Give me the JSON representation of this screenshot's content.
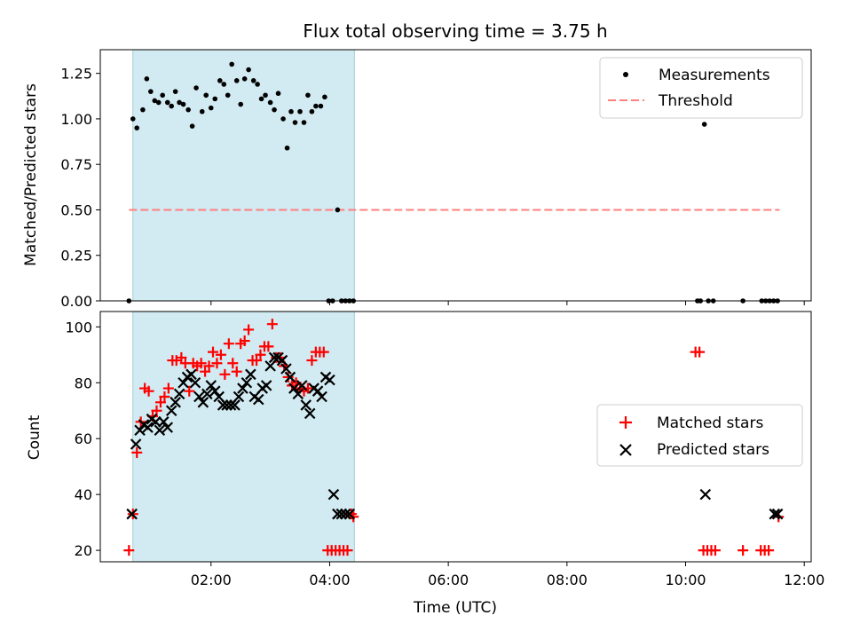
{
  "title": "Flux total observing time = 3.75 h",
  "colors": {
    "shade": "#add8e6",
    "threshold": "#ff7f7f",
    "matched": "#ff0000",
    "predicted": "#000000",
    "measurement": "#000000"
  },
  "chart_data": [
    {
      "type": "scatter",
      "ylabel": "Matched/Predicted stars",
      "ylim": [
        0,
        1.38
      ],
      "xlim": [
        "00:08",
        "12:07"
      ],
      "yticks": [
        "0.00",
        "0.25",
        "0.50",
        "0.75",
        "1.00",
        "1.25"
      ],
      "shaded_span": [
        "00:41",
        "04:25"
      ],
      "legend": {
        "placement": "top-right",
        "measurements": "Measurements",
        "threshold": "Threshold"
      },
      "threshold": {
        "value": 0.5,
        "x_range": [
          "00:37",
          "11:35"
        ]
      },
      "series": [
        {
          "name": "Measurements",
          "x": [
            "00:37",
            "00:41",
            "00:45",
            "00:51",
            "00:55",
            "00:59",
            "01:03",
            "01:07",
            "01:11",
            "01:16",
            "01:20",
            "01:24",
            "01:28",
            "01:32",
            "01:37",
            "01:41",
            "01:45",
            "01:51",
            "01:55",
            "02:00",
            "02:04",
            "02:09",
            "02:13",
            "02:17",
            "02:21",
            "02:26",
            "02:30",
            "02:34",
            "02:38",
            "02:43",
            "02:47",
            "02:51",
            "02:55",
            "03:00",
            "03:04",
            "03:08",
            "03:13",
            "03:17",
            "03:21",
            "03:25",
            "03:30",
            "03:34",
            "03:38",
            "03:42",
            "03:46",
            "03:51",
            "03:55",
            "03:59",
            "04:03",
            "04:08",
            "04:12",
            "04:16",
            "04:20",
            "04:24",
            "10:12",
            "10:15",
            "10:19",
            "10:23",
            "10:28",
            "10:58",
            "11:17",
            "11:21",
            "11:25",
            "11:29",
            "11:33"
          ],
          "y": [
            0.0,
            1.0,
            0.95,
            1.05,
            1.22,
            1.15,
            1.1,
            1.09,
            1.13,
            1.09,
            1.07,
            1.15,
            1.09,
            1.08,
            1.05,
            0.96,
            1.17,
            1.04,
            1.13,
            1.06,
            1.11,
            1.21,
            1.19,
            1.13,
            1.3,
            1.21,
            1.08,
            1.22,
            1.27,
            1.21,
            1.19,
            1.11,
            1.13,
            1.09,
            1.05,
            1.14,
            1.0,
            0.84,
            1.04,
            0.98,
            1.04,
            0.98,
            1.13,
            1.04,
            1.07,
            1.07,
            1.12,
            0.0,
            0.0,
            0.5,
            0.0,
            0.0,
            0.0,
            0.0,
            0.0,
            0.0,
            0.97,
            0.0,
            0.0,
            0.0,
            0.0,
            0.0,
            0.0,
            0.0,
            0.0
          ]
        }
      ]
    },
    {
      "type": "scatter",
      "xlabel": "Time (UTC)",
      "ylabel": "Count",
      "ylim": [
        15.9,
        105.5
      ],
      "xlim": [
        "00:08",
        "12:07"
      ],
      "xticks": [
        "02:00",
        "04:00",
        "06:00",
        "08:00",
        "10:00",
        "12:00"
      ],
      "yticks": [
        "20",
        "40",
        "60",
        "80",
        "100"
      ],
      "shaded_span": [
        "00:41",
        "04:25"
      ],
      "legend": {
        "placement": "center-right",
        "matched": "Matched stars",
        "predicted": "Predicted stars"
      },
      "series": [
        {
          "name": "Matched stars",
          "x": [
            "00:37",
            "00:41",
            "00:45",
            "00:49",
            "00:53",
            "00:57",
            "01:01",
            "01:05",
            "01:09",
            "01:13",
            "01:17",
            "01:21",
            "01:25",
            "01:30",
            "01:34",
            "01:38",
            "01:42",
            "01:46",
            "01:50",
            "01:54",
            "01:58",
            "02:02",
            "02:06",
            "02:10",
            "02:14",
            "02:18",
            "02:22",
            "02:26",
            "02:30",
            "02:34",
            "02:38",
            "02:42",
            "02:46",
            "02:50",
            "02:54",
            "02:58",
            "03:02",
            "03:06",
            "03:10",
            "03:14",
            "03:18",
            "03:22",
            "03:26",
            "03:30",
            "03:34",
            "03:38",
            "03:42",
            "03:46",
            "03:50",
            "03:54",
            "03:58",
            "04:02",
            "04:06",
            "04:10",
            "04:14",
            "04:18",
            "04:22",
            "04:24",
            "10:10",
            "10:14",
            "10:18",
            "10:22",
            "10:26",
            "10:30",
            "10:58",
            "11:16",
            "11:20",
            "11:24",
            "11:34"
          ],
          "y": [
            20,
            33,
            55,
            66,
            78,
            77,
            68,
            70,
            73,
            75,
            78,
            88,
            88,
            89,
            87,
            77,
            87,
            86,
            87,
            84,
            86,
            91,
            87,
            90,
            83,
            94,
            87,
            84,
            94,
            95,
            99,
            88,
            88,
            90,
            93,
            93,
            101,
            89,
            89,
            86,
            82,
            79,
            80,
            78,
            77,
            78,
            88,
            91,
            91,
            91,
            20,
            20,
            20,
            20,
            20,
            20,
            33,
            32,
            91,
            91,
            20,
            20,
            20,
            20,
            20,
            20,
            20,
            20,
            32
          ]
        },
        {
          "name": "Predicted stars",
          "x": [
            "00:40",
            "00:44",
            "00:48",
            "00:52",
            "00:56",
            "01:00",
            "01:04",
            "01:08",
            "01:12",
            "01:16",
            "01:20",
            "01:24",
            "01:28",
            "01:32",
            "01:36",
            "01:40",
            "01:44",
            "01:48",
            "01:52",
            "01:56",
            "02:00",
            "02:04",
            "02:08",
            "02:12",
            "02:16",
            "02:20",
            "02:24",
            "02:28",
            "02:32",
            "02:36",
            "02:40",
            "02:44",
            "02:48",
            "02:52",
            "02:56",
            "03:00",
            "03:04",
            "03:08",
            "03:12",
            "03:16",
            "03:20",
            "03:24",
            "03:28",
            "03:32",
            "03:36",
            "03:40",
            "03:44",
            "03:48",
            "03:52",
            "03:56",
            "04:00",
            "04:04",
            "04:08",
            "04:12",
            "04:16",
            "04:20",
            "10:20",
            "11:30",
            "11:33"
          ],
          "y": [
            33,
            58,
            63,
            65,
            64,
            67,
            66,
            63,
            66,
            64,
            70,
            73,
            76,
            80,
            82,
            83,
            80,
            75,
            73,
            76,
            79,
            77,
            75,
            72,
            72,
            72,
            72,
            75,
            78,
            80,
            83,
            75,
            74,
            78,
            79,
            86,
            89,
            89,
            88,
            85,
            82,
            78,
            76,
            79,
            72,
            69,
            78,
            77,
            75,
            82,
            81,
            40,
            33,
            33,
            33,
            33,
            40,
            33,
            33
          ]
        }
      ]
    }
  ]
}
